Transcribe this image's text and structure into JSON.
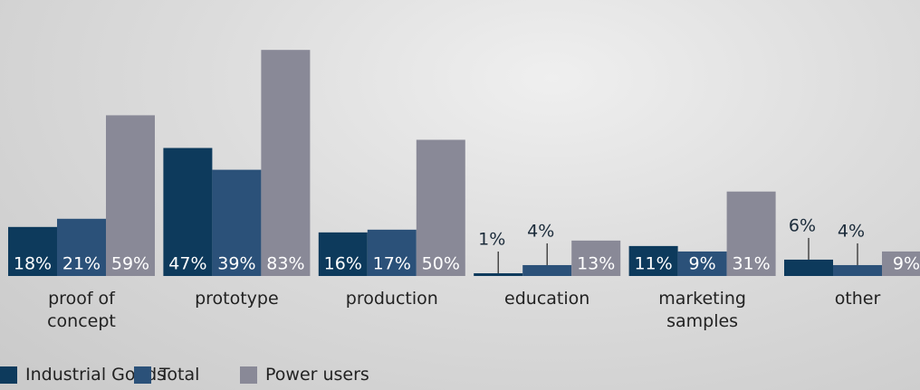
{
  "chart_data": {
    "type": "bar",
    "categories": [
      "proof of concept",
      "prototype",
      "production",
      "education",
      "marketing samples",
      "other"
    ],
    "series": [
      {
        "name": "Industrial Goods",
        "color": "#0d3a5c",
        "values": [
          18,
          47,
          16,
          1,
          11,
          6
        ],
        "value_labels": [
          "18%",
          "47%",
          "16%",
          "1%",
          "11%",
          "6%"
        ]
      },
      {
        "name": "Total",
        "color": "#2b5179",
        "values": [
          21,
          39,
          17,
          4,
          9,
          4
        ],
        "value_labels": [
          "21%",
          "39%",
          "17%",
          "4%",
          "9%",
          "4%"
        ]
      },
      {
        "name": "Power users",
        "color": "#898997",
        "values": [
          59,
          83,
          50,
          13,
          31,
          9
        ],
        "value_labels": [
          "59%",
          "83%",
          "50%",
          "13%",
          "31%",
          "9%"
        ]
      }
    ],
    "ylim": [
      0,
      100
    ],
    "legend": "bottom-left"
  }
}
